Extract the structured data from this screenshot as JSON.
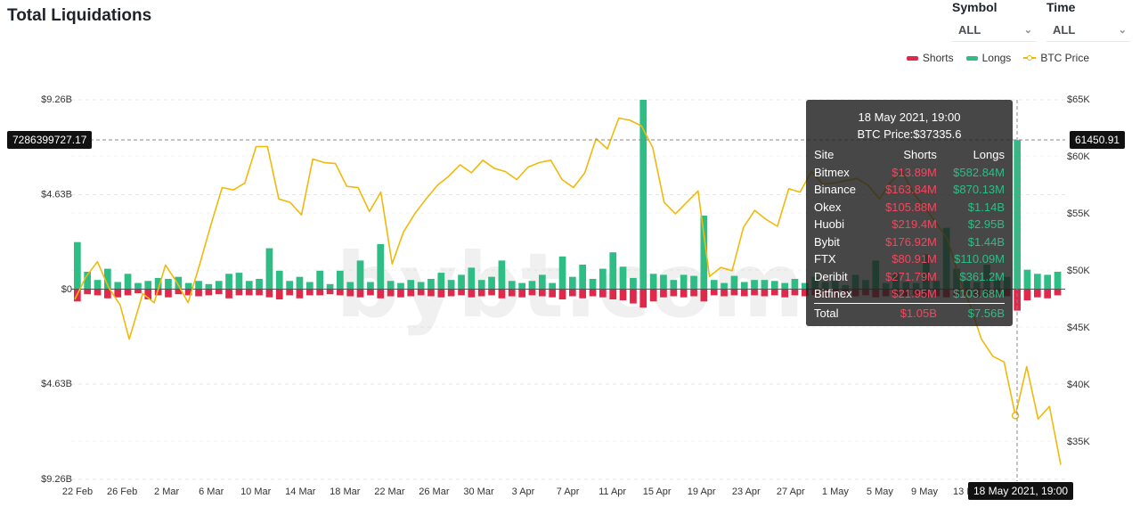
{
  "header": {
    "title": "Total Liquidations",
    "symbol_label": "Symbol",
    "symbol_value": "ALL",
    "time_label": "Time",
    "time_value": "ALL"
  },
  "legend": {
    "shorts": "Shorts",
    "longs": "Longs",
    "btc": "BTC Price"
  },
  "colors": {
    "shorts": "#e0294a",
    "longs": "#2ebd85",
    "btc": "#f0b90b"
  },
  "watermark": "bybt.com",
  "crosshair": {
    "y_value": "7286399727.17",
    "btc_value": "61450.91",
    "x_label": "18 May 2021, 19:00"
  },
  "tooltip": {
    "date": "18 May 2021, 19:00",
    "btc_price": "BTC Price:$37335.6",
    "col_site": "Site",
    "col_shorts": "Shorts",
    "col_longs": "Longs",
    "rows": [
      {
        "site": "Bitmex",
        "shorts": "$13.89M",
        "longs": "$582.84M"
      },
      {
        "site": "Binance",
        "shorts": "$163.84M",
        "longs": "$870.13M"
      },
      {
        "site": "Okex",
        "shorts": "$105.88M",
        "longs": "$1.14B"
      },
      {
        "site": "Huobi",
        "shorts": "$219.4M",
        "longs": "$2.95B"
      },
      {
        "site": "Bybit",
        "shorts": "$176.92M",
        "longs": "$1.44B"
      },
      {
        "site": "FTX",
        "shorts": "$80.91M",
        "longs": "$110.09M"
      },
      {
        "site": "Deribit",
        "shorts": "$271.79M",
        "longs": "$361.2M"
      },
      {
        "site": "Bitfinex",
        "shorts": "$21.95M",
        "longs": "$103.68M"
      }
    ],
    "total_label": "Total",
    "total_shorts": "$1.05B",
    "total_longs": "$7.56B"
  },
  "chart_data": {
    "type": "bar",
    "title": "Total Liquidations",
    "y_left_ticks": [
      "$9.26B",
      "$4.63B",
      "$0",
      "$4.63B",
      "$9.26B"
    ],
    "y_left_range": [
      -9.26,
      9.26
    ],
    "y_left_unit": "billion USD",
    "y_right_ticks": [
      "$65K",
      "$60K",
      "$55K",
      "$50K",
      "$45K",
      "$40K",
      "$35K"
    ],
    "y_right_range": [
      31700,
      65000
    ],
    "x_tick_labels": [
      "22 Feb",
      "26 Feb",
      "2 Mar",
      "6 Mar",
      "10 Mar",
      "14 Mar",
      "18 Mar",
      "22 Mar",
      "26 Mar",
      "30 Mar",
      "3 Apr",
      "7 Apr",
      "11 Apr",
      "15 Apr",
      "19 Apr",
      "23 Apr",
      "27 Apr",
      "1 May",
      "5 May",
      "9 May",
      "13 May"
    ],
    "x_start": "2021-02-22",
    "grid": true,
    "legend_position": "top-right",
    "longs": [
      2.3,
      0.85,
      0.45,
      1.0,
      0.35,
      0.75,
      0.3,
      0.4,
      0.55,
      0.5,
      0.6,
      0.3,
      0.4,
      0.25,
      0.4,
      0.75,
      0.8,
      0.4,
      0.5,
      2.0,
      0.9,
      0.4,
      0.6,
      0.35,
      0.9,
      0.25,
      0.9,
      0.35,
      1.4,
      0.35,
      2.2,
      0.4,
      0.3,
      0.45,
      0.35,
      0.5,
      0.8,
      0.45,
      0.7,
      1.05,
      0.45,
      0.6,
      1.4,
      0.4,
      0.3,
      0.4,
      0.7,
      0.3,
      1.6,
      0.6,
      1.2,
      0.5,
      1.0,
      1.8,
      1.1,
      0.55,
      9.26,
      0.75,
      0.7,
      0.45,
      0.7,
      0.65,
      3.6,
      0.45,
      0.3,
      0.65,
      0.35,
      0.45,
      0.45,
      0.4,
      0.3,
      0.5,
      0.3,
      0.6,
      0.35,
      0.4,
      0.2,
      0.7,
      0.45,
      1.4,
      0.3,
      0.8,
      0.35,
      0.3,
      1.7,
      0.4,
      3.0,
      1.0,
      0.4,
      0.35,
      1.2,
      0.45,
      0.6,
      7.29,
      0.95,
      0.75,
      0.7,
      0.85
    ],
    "shorts": [
      0.6,
      0.25,
      0.3,
      0.45,
      0.4,
      0.3,
      0.2,
      0.5,
      0.3,
      0.4,
      0.25,
      0.3,
      0.35,
      0.3,
      0.25,
      0.45,
      0.3,
      0.3,
      0.3,
      0.4,
      0.5,
      0.3,
      0.45,
      0.3,
      0.3,
      0.25,
      0.3,
      0.35,
      0.4,
      0.3,
      0.45,
      0.35,
      0.4,
      0.35,
      0.3,
      0.35,
      0.4,
      0.35,
      0.3,
      0.4,
      0.35,
      0.3,
      0.45,
      0.35,
      0.4,
      0.3,
      0.35,
      0.4,
      0.5,
      0.35,
      0.45,
      0.35,
      0.4,
      0.5,
      0.55,
      0.7,
      0.9,
      0.6,
      0.4,
      0.35,
      0.4,
      0.35,
      0.6,
      0.3,
      0.35,
      0.3,
      0.35,
      0.3,
      0.35,
      0.3,
      0.4,
      0.3,
      0.35,
      0.3,
      0.35,
      0.4,
      0.3,
      0.35,
      0.3,
      0.4,
      0.35,
      0.3,
      0.35,
      0.3,
      0.4,
      0.35,
      0.4,
      0.35,
      0.3,
      0.4,
      0.35,
      0.3,
      0.35,
      1.05,
      0.55,
      0.4,
      0.45,
      0.3
    ],
    "btc_price": [
      [
        0,
        47500
      ],
      [
        1,
        49500
      ],
      [
        2,
        50800
      ],
      [
        3,
        48500
      ],
      [
        4,
        47000
      ],
      [
        4.8,
        44000
      ],
      [
        6,
        48000
      ],
      [
        7,
        47200
      ],
      [
        8,
        50500
      ],
      [
        9,
        49000
      ],
      [
        10,
        47200
      ],
      [
        11,
        50500
      ],
      [
        12,
        54000
      ],
      [
        13,
        57300
      ],
      [
        14,
        57100
      ],
      [
        15,
        57700
      ],
      [
        16,
        60900
      ],
      [
        17,
        60900
      ],
      [
        18,
        56300
      ],
      [
        19,
        56000
      ],
      [
        20,
        54900
      ],
      [
        21,
        59800
      ],
      [
        22,
        59500
      ],
      [
        23,
        59400
      ],
      [
        24,
        57400
      ],
      [
        25,
        57300
      ],
      [
        26,
        55200
      ],
      [
        27,
        56900
      ],
      [
        28,
        50600
      ],
      [
        29,
        53400
      ],
      [
        30,
        55000
      ],
      [
        31,
        56300
      ],
      [
        32,
        57500
      ],
      [
        33,
        58300
      ],
      [
        34,
        59300
      ],
      [
        35,
        58600
      ],
      [
        36,
        59700
      ],
      [
        37,
        59000
      ],
      [
        38,
        58700
      ],
      [
        39,
        58000
      ],
      [
        40,
        59100
      ],
      [
        41,
        59500
      ],
      [
        42,
        59700
      ],
      [
        43,
        58000
      ],
      [
        44,
        57300
      ],
      [
        45,
        58600
      ],
      [
        46,
        61600
      ],
      [
        47,
        60700
      ],
      [
        48,
        63400
      ],
      [
        49,
        63200
      ],
      [
        50,
        62700
      ],
      [
        51,
        60800
      ],
      [
        52,
        56000
      ],
      [
        53,
        55000
      ],
      [
        54,
        56000
      ],
      [
        55,
        57000
      ],
      [
        56,
        49500
      ],
      [
        57,
        50300
      ],
      [
        58,
        50000
      ],
      [
        59,
        53800
      ],
      [
        60,
        55300
      ],
      [
        61,
        54500
      ],
      [
        62,
        53900
      ],
      [
        63,
        57200
      ],
      [
        64,
        56900
      ],
      [
        65,
        58700
      ],
      [
        66,
        57600
      ],
      [
        67,
        57700
      ],
      [
        68,
        57900
      ],
      [
        69,
        58100
      ],
      [
        70,
        57500
      ],
      [
        71,
        56300
      ],
      [
        72,
        57800
      ],
      [
        73,
        58700
      ],
      [
        74,
        56800
      ],
      [
        75,
        55600
      ],
      [
        76,
        54200
      ],
      [
        77,
        52800
      ],
      [
        78,
        49500
      ],
      [
        79,
        47000
      ],
      [
        80,
        44000
      ],
      [
        81,
        42500
      ],
      [
        82,
        42000
      ],
      [
        83,
        37300
      ],
      [
        84,
        41600
      ],
      [
        85,
        37000
      ],
      [
        86,
        38100
      ],
      [
        87,
        33000
      ]
    ]
  }
}
